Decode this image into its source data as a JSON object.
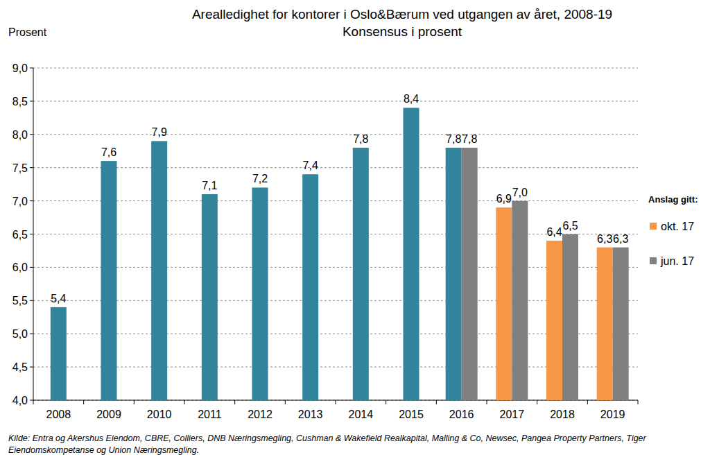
{
  "chart_data": {
    "type": "bar",
    "title": "Arealledighet for kontorer i Oslo&Bærum ved utgangen av året, 2008-19",
    "subtitle": "Konsensus i prosent",
    "y_label": "Prosent",
    "legend_title": "Anslag gitt:",
    "source": "Kilde: Entra og Akershus Eiendom, CBRE, Colliers, DNB Næringsmegling, Cushman & Wakefield Realkapital, Malling & Co, Newsec, Pangea Property Partners, Tiger Eiendomskompetanse og Union Næringsmegling.",
    "categories": [
      "2008",
      "2009",
      "2010",
      "2011",
      "2012",
      "2013",
      "2014",
      "2015",
      "2016",
      "2017",
      "2018",
      "2019"
    ],
    "series": [
      {
        "color": "#31849b",
        "values": [
          5.4,
          7.6,
          7.9,
          7.1,
          7.2,
          7.4,
          7.8,
          8.4,
          7.8,
          null,
          null,
          null
        ],
        "value_labels": [
          "5,4",
          "7,6",
          "7,9",
          "7,1",
          "7,2",
          "7,4",
          "7,8",
          "8,4",
          "7,8",
          null,
          null,
          null
        ]
      },
      {
        "name": "okt. 17",
        "color": "#f79646",
        "values": [
          null,
          null,
          null,
          null,
          null,
          null,
          null,
          null,
          null,
          6.9,
          6.4,
          6.3
        ],
        "value_labels": [
          null,
          null,
          null,
          null,
          null,
          null,
          null,
          null,
          null,
          "6,9",
          "6,4",
          "6,3"
        ]
      },
      {
        "name": "jun. 17",
        "color": "#808080",
        "values": [
          null,
          null,
          null,
          null,
          null,
          null,
          null,
          null,
          7.8,
          7.0,
          6.5,
          6.3
        ],
        "value_labels": [
          null,
          null,
          null,
          null,
          null,
          null,
          null,
          null,
          "7,8",
          "7,0",
          "6,5",
          "6,3"
        ]
      }
    ],
    "ylim": [
      4,
      9
    ],
    "yticks": [
      {
        "value": 4,
        "label": "4,0"
      },
      {
        "value": 4.5,
        "label": "4,5"
      },
      {
        "value": 5,
        "label": "5,0"
      },
      {
        "value": 5.5,
        "label": "5,5"
      },
      {
        "value": 6,
        "label": "6,0"
      },
      {
        "value": 6.5,
        "label": "6,5"
      },
      {
        "value": 7,
        "label": "7,0"
      },
      {
        "value": 7.5,
        "label": "7,5"
      },
      {
        "value": 8,
        "label": "8,0"
      },
      {
        "value": 8.5,
        "label": "8,5"
      },
      {
        "value": 9,
        "label": "9,0"
      }
    ],
    "grid": true,
    "data_labels": true,
    "legend": "right"
  }
}
